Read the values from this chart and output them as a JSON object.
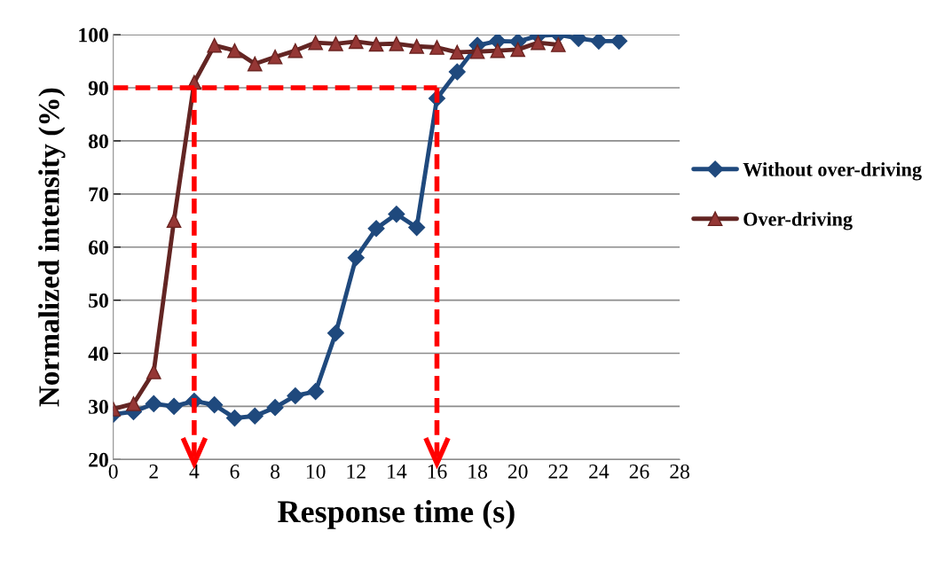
{
  "chart_data": {
    "type": "line",
    "xlabel": "Response time (s)",
    "ylabel": "Normalized intensity (%)",
    "x": [
      0,
      1,
      2,
      3,
      4,
      5,
      6,
      7,
      8,
      9,
      10,
      11,
      12,
      13,
      14,
      15,
      16,
      17,
      18,
      19,
      20,
      21,
      22,
      23,
      24,
      25
    ],
    "series": [
      {
        "name": "Without over-driving",
        "color": "#1f497d",
        "marker": "diamond",
        "values": [
          28.5,
          29,
          30.5,
          30,
          31,
          30.3,
          27.8,
          28.2,
          29.8,
          32,
          32.8,
          43.8,
          58,
          63.5,
          66.2,
          63.7,
          88,
          93,
          98,
          98.8,
          98.7,
          99.8,
          100,
          99.3,
          98.8,
          98.8
        ]
      },
      {
        "name": "Over-driving",
        "color": "#632523",
        "marker": "triangle",
        "x": [
          0,
          1,
          2,
          3,
          4,
          5,
          6,
          7,
          8,
          9,
          10,
          11,
          12,
          13,
          14,
          15,
          16,
          17,
          18,
          19,
          20,
          21,
          22
        ],
        "values": [
          29.5,
          30.5,
          36.5,
          65,
          91,
          98,
          97,
          94.5,
          95.8,
          97,
          98.5,
          98.3,
          98.7,
          98.2,
          98.3,
          97.8,
          97.6,
          96.7,
          96.8,
          97,
          97.2,
          98.5,
          98.1
        ]
      }
    ],
    "xlim": [
      0,
      28
    ],
    "xticks": [
      0,
      2,
      4,
      6,
      8,
      10,
      12,
      14,
      16,
      18,
      20,
      22,
      24,
      26,
      28
    ],
    "ylim": [
      20,
      100
    ],
    "yticks": [
      20,
      30,
      40,
      50,
      60,
      70,
      80,
      90,
      100
    ],
    "grid": "y",
    "legend": "right",
    "ref_lines": [
      {
        "axis": "y",
        "value": 90,
        "color": "#ff0000",
        "line_style": "dashed"
      },
      {
        "axis": "x",
        "value": 4,
        "color": "#ff0000",
        "line_style": "dashed"
      },
      {
        "axis": "x",
        "value": 16,
        "color": "#ff0000",
        "line_style": "dashed"
      }
    ]
  }
}
